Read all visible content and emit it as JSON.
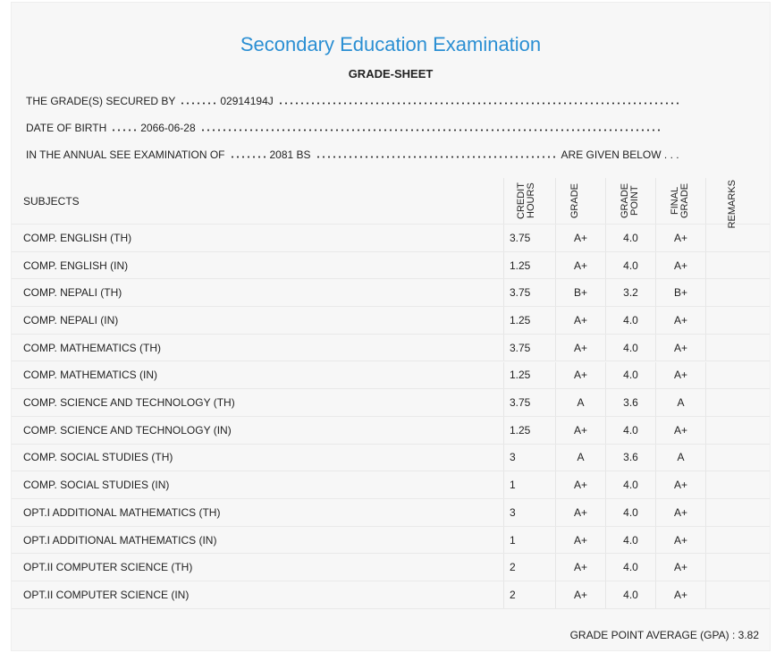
{
  "header": {
    "title": "Secondary Education Examination",
    "subtitle": "GRADE-SHEET"
  },
  "info": {
    "secured_by_label": "THE GRADE(S) SECURED BY",
    "symbol_no": "02914194J",
    "dob_label": "DATE OF BIRTH",
    "dob": "2066-06-28",
    "exam_label": "IN THE ANNUAL SEE EXAMINATION OF",
    "exam_year": "2081 BS",
    "exam_tail": "ARE GIVEN BELOW . . ."
  },
  "table": {
    "columns": [
      "SUBJECTS",
      "CREDIT HOURS",
      "GRADE",
      "GRADE POINT",
      "FINAL GRADE",
      "REMARKS"
    ],
    "rows": [
      [
        "COMP. ENGLISH (TH)",
        "3.75",
        "A+",
        "4.0",
        "A+"
      ],
      [
        "COMP. ENGLISH (IN)",
        "1.25",
        "A+",
        "4.0",
        "A+"
      ],
      [
        "COMP. NEPALI (TH)",
        "3.75",
        "B+",
        "3.2",
        "B+"
      ],
      [
        "COMP. NEPALI (IN)",
        "1.25",
        "A+",
        "4.0",
        "A+"
      ],
      [
        "COMP. MATHEMATICS (TH)",
        "3.75",
        "A+",
        "4.0",
        "A+"
      ],
      [
        "COMP. MATHEMATICS (IN)",
        "1.25",
        "A+",
        "4.0",
        "A+"
      ],
      [
        "COMP. SCIENCE AND TECHNOLOGY (TH)",
        "3.75",
        "A",
        "3.6",
        "A"
      ],
      [
        "COMP. SCIENCE AND TECHNOLOGY (IN)",
        "1.25",
        "A+",
        "4.0",
        "A+"
      ],
      [
        "COMP. SOCIAL STUDIES (TH)",
        "3",
        "A",
        "3.6",
        "A"
      ],
      [
        "COMP. SOCIAL STUDIES (IN)",
        "1",
        "A+",
        "4.0",
        "A+"
      ],
      [
        "OPT.I ADDITIONAL MATHEMATICS (TH)",
        "3",
        "A+",
        "4.0",
        "A+"
      ],
      [
        "OPT.I ADDITIONAL MATHEMATICS (IN)",
        "1",
        "A+",
        "4.0",
        "A+"
      ],
      [
        "OPT.II COMPUTER SCIENCE (TH)",
        "2",
        "A+",
        "4.0",
        "A+"
      ],
      [
        "OPT.II COMPUTER SCIENCE (IN)",
        "2",
        "A+",
        "4.0",
        "A+"
      ]
    ]
  },
  "footer": {
    "gpa_label": "GRADE POINT AVERAGE (GPA) :",
    "gpa": "3.82"
  }
}
